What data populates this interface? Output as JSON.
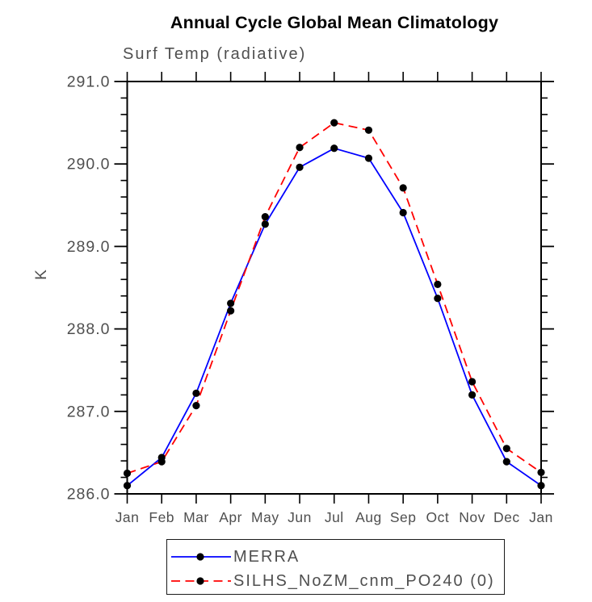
{
  "chart_data": {
    "type": "line",
    "title": "Annual Cycle Global Mean Climatology",
    "subtitle": "Surf Temp (radiative)",
    "ylabel": "K",
    "xlabel": "",
    "categories": [
      "Jan",
      "Feb",
      "Mar",
      "Apr",
      "May",
      "Jun",
      "Jul",
      "Aug",
      "Sep",
      "Oct",
      "Nov",
      "Dec",
      "Jan"
    ],
    "ylim": [
      286.0,
      291.0
    ],
    "ytick_major": 1.0,
    "ytick_minor": 0.2,
    "ytick_labels": [
      "286.0",
      "287.0",
      "288.0",
      "289.0",
      "290.0",
      "291.0"
    ],
    "grid": false,
    "legend_position": "bottom",
    "series": [
      {
        "name": "MERRA",
        "color": "#0000ff",
        "style": "solid",
        "marker": "circle",
        "marker_color": "#000000",
        "values": [
          286.1,
          286.44,
          287.22,
          288.31,
          289.27,
          289.96,
          290.19,
          290.07,
          289.41,
          288.37,
          287.2,
          286.39,
          286.1
        ]
      },
      {
        "name": "SILHS_NoZM_cnm_PO240 (0)",
        "color": "#ff0000",
        "style": "dashed",
        "marker": "circle",
        "marker_color": "#000000",
        "values": [
          286.25,
          286.39,
          287.07,
          288.22,
          289.36,
          290.2,
          290.5,
          290.41,
          289.71,
          288.54,
          287.36,
          286.55,
          286.26
        ]
      }
    ],
    "colors": {
      "frame": "#000000",
      "tick_text": "#4f4f4f",
      "title_text": "#000000"
    }
  }
}
